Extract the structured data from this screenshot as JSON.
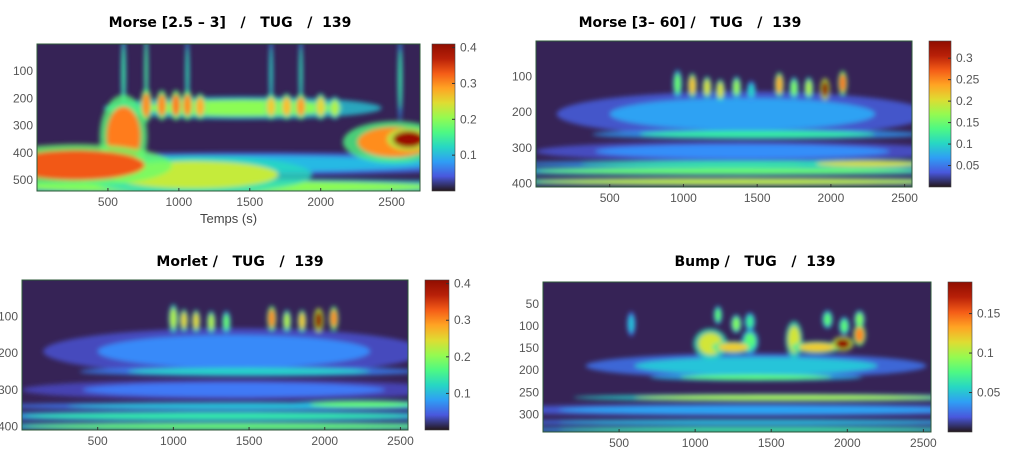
{
  "chart_data": [
    {
      "type": "heatmap",
      "title": "Morse [2.5 – 3]   /   TUG   /  139",
      "xlabel": "Temps (s)",
      "ylabel": "",
      "xlim": [
        0,
        2700
      ],
      "ylim": [
        0,
        540
      ],
      "clim": [
        0,
        0.41
      ],
      "xticks": [
        500,
        1000,
        1500,
        2000,
        2500
      ],
      "yticks": [
        100,
        200,
        300,
        400,
        500
      ],
      "colorbar_ticks": [
        0.1,
        0.2,
        0.3,
        0.4
      ],
      "colormap": "turbo",
      "features": [
        {
          "t": 1350,
          "s": 525,
          "dt": 1500,
          "ds": 22,
          "v": 0.2
        },
        {
          "t": 1500,
          "s": 440,
          "dt": 1300,
          "ds": 30,
          "v": 0.1
        },
        {
          "t": 1100,
          "s": 480,
          "dt": 600,
          "ds": 50,
          "v": 0.23
        },
        {
          "t": 280,
          "s": 445,
          "dt": 480,
          "ds": 55,
          "v": 0.33
        },
        {
          "t": 610,
          "s": 340,
          "dt": 120,
          "ds": 110,
          "v": 0.31
        },
        {
          "t": 2520,
          "s": 360,
          "dt": 260,
          "ds": 55,
          "v": 0.3
        },
        {
          "t": 2620,
          "s": 350,
          "dt": 110,
          "ds": 30,
          "v": 0.39
        },
        {
          "t": 1450,
          "s": 235,
          "dt": 700,
          "ds": 30,
          "v": 0.2
        },
        {
          "t": 770,
          "s": 225,
          "dt": 30,
          "ds": 45,
          "v": 0.3
        },
        {
          "t": 880,
          "s": 225,
          "dt": 30,
          "ds": 40,
          "v": 0.3
        },
        {
          "t": 980,
          "s": 225,
          "dt": 30,
          "ds": 40,
          "v": 0.31
        },
        {
          "t": 1060,
          "s": 225,
          "dt": 30,
          "ds": 40,
          "v": 0.3
        },
        {
          "t": 1150,
          "s": 230,
          "dt": 30,
          "ds": 35,
          "v": 0.28
        },
        {
          "t": 1650,
          "s": 230,
          "dt": 30,
          "ds": 35,
          "v": 0.26
        },
        {
          "t": 1760,
          "s": 230,
          "dt": 30,
          "ds": 35,
          "v": 0.27
        },
        {
          "t": 1860,
          "s": 230,
          "dt": 30,
          "ds": 35,
          "v": 0.29
        },
        {
          "t": 2000,
          "s": 230,
          "dt": 30,
          "ds": 35,
          "v": 0.25
        },
        {
          "t": 2100,
          "s": 235,
          "dt": 30,
          "ds": 30,
          "v": 0.22
        },
        {
          "t": 610,
          "s": 110,
          "dt": 12,
          "ds": 110,
          "v": 0.15
        },
        {
          "t": 770,
          "s": 100,
          "dt": 10,
          "ds": 110,
          "v": 0.16
        },
        {
          "t": 1060,
          "s": 110,
          "dt": 10,
          "ds": 100,
          "v": 0.14
        },
        {
          "t": 1650,
          "s": 110,
          "dt": 10,
          "ds": 100,
          "v": 0.13
        },
        {
          "t": 1860,
          "s": 110,
          "dt": 10,
          "ds": 100,
          "v": 0.14
        },
        {
          "t": 2560,
          "s": 130,
          "dt": 12,
          "ds": 110,
          "v": 0.15
        }
      ]
    },
    {
      "type": "heatmap",
      "title": "Morse [3– 60] /   TUG   /  139",
      "xlabel": "",
      "ylabel": "",
      "xlim": [
        0,
        2550
      ],
      "ylim": [
        0,
        410
      ],
      "clim": [
        0,
        0.34
      ],
      "xticks": [
        500,
        1000,
        1500,
        2000,
        2500
      ],
      "yticks": [
        100,
        200,
        300,
        400
      ],
      "colorbar_ticks": [
        0.05,
        0.1,
        0.15,
        0.2,
        0.25,
        0.3
      ],
      "colormap": "turbo",
      "features": [
        {
          "t": 1400,
          "s": 395,
          "dt": 1400,
          "ds": 8,
          "v": 0.19
        },
        {
          "t": 1300,
          "s": 365,
          "dt": 1300,
          "ds": 9,
          "v": 0.15
        },
        {
          "t": 1500,
          "s": 345,
          "dt": 1200,
          "ds": 7,
          "v": 0.12
        },
        {
          "t": 2250,
          "s": 345,
          "dt": 350,
          "ds": 8,
          "v": 0.2
        },
        {
          "t": 1400,
          "s": 310,
          "dt": 1000,
          "ds": 20,
          "v": 0.06
        },
        {
          "t": 1500,
          "s": 262,
          "dt": 800,
          "ds": 10,
          "v": 0.12
        },
        {
          "t": 1400,
          "s": 205,
          "dt": 900,
          "ds": 45,
          "v": 0.07
        },
        {
          "t": 960,
          "s": 120,
          "dt": 22,
          "ds": 28,
          "v": 0.15
        },
        {
          "t": 1060,
          "s": 125,
          "dt": 22,
          "ds": 25,
          "v": 0.22
        },
        {
          "t": 1160,
          "s": 130,
          "dt": 22,
          "ds": 22,
          "v": 0.2
        },
        {
          "t": 1250,
          "s": 138,
          "dt": 22,
          "ds": 22,
          "v": 0.2
        },
        {
          "t": 1360,
          "s": 130,
          "dt": 22,
          "ds": 22,
          "v": 0.17
        },
        {
          "t": 1460,
          "s": 140,
          "dt": 22,
          "ds": 20,
          "v": 0.1
        },
        {
          "t": 1650,
          "s": 122,
          "dt": 22,
          "ds": 25,
          "v": 0.23
        },
        {
          "t": 1750,
          "s": 132,
          "dt": 22,
          "ds": 22,
          "v": 0.16
        },
        {
          "t": 1850,
          "s": 132,
          "dt": 22,
          "ds": 22,
          "v": 0.18
        },
        {
          "t": 1960,
          "s": 135,
          "dt": 24,
          "ds": 22,
          "v": 0.34
        },
        {
          "t": 2080,
          "s": 118,
          "dt": 22,
          "ds": 25,
          "v": 0.26
        }
      ]
    },
    {
      "type": "heatmap",
      "title": "Morlet /   TUG   /  139",
      "xlabel": "",
      "ylabel": "",
      "xlim": [
        0,
        2550
      ],
      "ylim": [
        0,
        410
      ],
      "clim": [
        0,
        0.41
      ],
      "xticks": [
        500,
        1000,
        1500,
        2000,
        2500
      ],
      "yticks": [
        100,
        200,
        300,
        400
      ],
      "colorbar_ticks": [
        0.1,
        0.2,
        0.3,
        0.4
      ],
      "colormap": "turbo",
      "features": [
        {
          "t": 1400,
          "s": 400,
          "dt": 1400,
          "ds": 8,
          "v": 0.18
        },
        {
          "t": 1300,
          "s": 372,
          "dt": 1300,
          "ds": 10,
          "v": 0.14
        },
        {
          "t": 1500,
          "s": 345,
          "dt": 1200,
          "ds": 8,
          "v": 0.11
        },
        {
          "t": 2250,
          "s": 340,
          "dt": 350,
          "ds": 8,
          "v": 0.18
        },
        {
          "t": 1400,
          "s": 300,
          "dt": 1000,
          "ds": 20,
          "v": 0.06
        },
        {
          "t": 1500,
          "s": 250,
          "dt": 800,
          "ds": 10,
          "v": 0.12
        },
        {
          "t": 1400,
          "s": 195,
          "dt": 900,
          "ds": 45,
          "v": 0.07
        },
        {
          "t": 1000,
          "s": 105,
          "dt": 22,
          "ds": 28,
          "v": 0.22
        },
        {
          "t": 1070,
          "s": 110,
          "dt": 20,
          "ds": 22,
          "v": 0.25
        },
        {
          "t": 1150,
          "s": 112,
          "dt": 20,
          "ds": 22,
          "v": 0.25
        },
        {
          "t": 1250,
          "s": 115,
          "dt": 20,
          "ds": 22,
          "v": 0.22
        },
        {
          "t": 1350,
          "s": 115,
          "dt": 20,
          "ds": 22,
          "v": 0.18
        },
        {
          "t": 1650,
          "s": 105,
          "dt": 22,
          "ds": 25,
          "v": 0.3
        },
        {
          "t": 1750,
          "s": 112,
          "dt": 20,
          "ds": 22,
          "v": 0.22
        },
        {
          "t": 1850,
          "s": 112,
          "dt": 20,
          "ds": 22,
          "v": 0.26
        },
        {
          "t": 1960,
          "s": 110,
          "dt": 24,
          "ds": 24,
          "v": 0.41
        },
        {
          "t": 2060,
          "s": 105,
          "dt": 22,
          "ds": 24,
          "v": 0.3
        }
      ]
    },
    {
      "type": "heatmap",
      "title": "Bump /   TUG   /  139",
      "xlabel": "",
      "ylabel": "",
      "xlim": [
        0,
        2550
      ],
      "ylim": [
        0,
        340
      ],
      "clim": [
        0,
        0.19
      ],
      "xticks": [
        500,
        1000,
        1500,
        2000,
        2500
      ],
      "yticks": [
        50,
        100,
        150,
        200,
        250,
        300
      ],
      "colorbar_ticks": [
        0.05,
        0.1,
        0.15
      ],
      "colormap": "turbo",
      "features": [
        {
          "t": 1400,
          "s": 335,
          "dt": 1300,
          "ds": 5,
          "v": 0.07
        },
        {
          "t": 1400,
          "s": 318,
          "dt": 1300,
          "ds": 5,
          "v": 0.05
        },
        {
          "t": 1400,
          "s": 290,
          "dt": 1300,
          "ds": 10,
          "v": 0.04
        },
        {
          "t": 1600,
          "s": 262,
          "dt": 1000,
          "ds": 6,
          "v": 0.1
        },
        {
          "t": 1400,
          "s": 216,
          "dt": 500,
          "ds": 6,
          "v": 0.08
        },
        {
          "t": 1400,
          "s": 190,
          "dt": 800,
          "ds": 20,
          "v": 0.05
        },
        {
          "t": 1100,
          "s": 140,
          "dt": 80,
          "ds": 25,
          "v": 0.11
        },
        {
          "t": 1250,
          "s": 148,
          "dt": 100,
          "ds": 10,
          "v": 0.12
        },
        {
          "t": 1360,
          "s": 135,
          "dt": 40,
          "ds": 20,
          "v": 0.08
        },
        {
          "t": 1650,
          "s": 130,
          "dt": 40,
          "ds": 30,
          "v": 0.11
        },
        {
          "t": 1800,
          "s": 148,
          "dt": 120,
          "ds": 10,
          "v": 0.12
        },
        {
          "t": 1970,
          "s": 140,
          "dt": 50,
          "ds": 12,
          "v": 0.19
        },
        {
          "t": 2080,
          "s": 120,
          "dt": 30,
          "ds": 18,
          "v": 0.14
        },
        {
          "t": 1150,
          "s": 75,
          "dt": 20,
          "ds": 15,
          "v": 0.08
        },
        {
          "t": 1270,
          "s": 95,
          "dt": 25,
          "ds": 15,
          "v": 0.09
        },
        {
          "t": 1360,
          "s": 90,
          "dt": 25,
          "ds": 15,
          "v": 0.07
        },
        {
          "t": 1870,
          "s": 85,
          "dt": 25,
          "ds": 15,
          "v": 0.08
        },
        {
          "t": 1980,
          "s": 100,
          "dt": 25,
          "ds": 15,
          "v": 0.08
        },
        {
          "t": 2080,
          "s": 85,
          "dt": 25,
          "ds": 15,
          "v": 0.09
        },
        {
          "t": 580,
          "s": 95,
          "dt": 20,
          "ds": 20,
          "v": 0.05
        }
      ]
    }
  ]
}
